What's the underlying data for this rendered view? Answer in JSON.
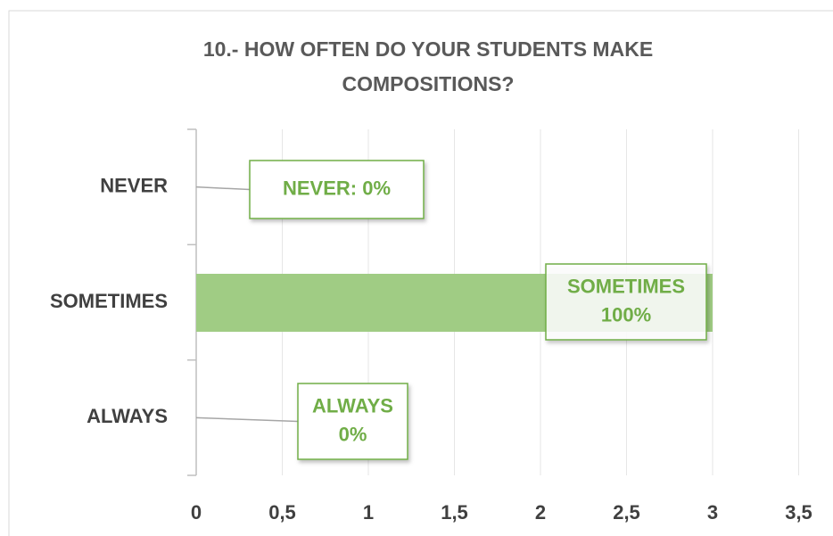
{
  "chart_data": {
    "type": "bar",
    "orientation": "horizontal",
    "title": [
      "10.- HOW OFTEN DO YOUR STUDENTS MAKE",
      "COMPOSITIONS?"
    ],
    "categories": [
      "NEVER",
      "SOMETIMES",
      "ALWAYS"
    ],
    "values": [
      0,
      3,
      0
    ],
    "color": "#a0cc84",
    "data_labels": [
      [
        "NEVER:  0%"
      ],
      [
        "SOMETIMES",
        "100%"
      ],
      [
        "ALWAYS",
        "0%"
      ]
    ],
    "xlim": [
      0,
      3.5
    ],
    "xticks": [
      0,
      {
        "value": 0.5,
        "label": "0,5"
      },
      1,
      {
        "value": 1.5,
        "label": "1,5"
      },
      2,
      {
        "value": 2.5,
        "label": "2,5"
      },
      3,
      {
        "value": 3.5,
        "label": "3,5"
      }
    ],
    "grid": true
  }
}
